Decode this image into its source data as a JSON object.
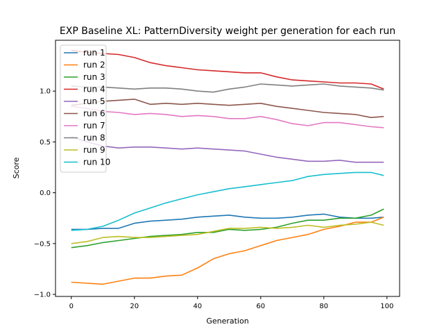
{
  "chart_data": {
    "type": "line",
    "title": "EXP Baseline XL: PatternDiversity weight per generation for each run",
    "xlabel": "Generation",
    "ylabel": "Score",
    "xlim": [
      -5,
      104
    ],
    "ylim": [
      -1.02,
      1.5
    ],
    "xticks": [
      0,
      20,
      40,
      60,
      80,
      100
    ],
    "yticks": [
      -1.0,
      -0.5,
      0.0,
      0.5,
      1.0
    ],
    "xtick_labels": [
      "0",
      "20",
      "40",
      "60",
      "80",
      "100"
    ],
    "ytick_labels": [
      "−1.0",
      "−0.5",
      "0.0",
      "0.5",
      "1.0"
    ],
    "grid": false,
    "legend_position": "top-left",
    "x": [
      0,
      5,
      10,
      15,
      20,
      25,
      30,
      35,
      40,
      45,
      50,
      55,
      60,
      65,
      70,
      75,
      80,
      85,
      90,
      95,
      99
    ],
    "series": [
      {
        "name": "run 1",
        "color": "#1f77b4",
        "values": [
          -0.36,
          -0.36,
          -0.35,
          -0.35,
          -0.3,
          -0.28,
          -0.27,
          -0.26,
          -0.24,
          -0.23,
          -0.22,
          -0.24,
          -0.25,
          -0.25,
          -0.24,
          -0.22,
          -0.21,
          -0.24,
          -0.25,
          -0.25,
          -0.24
        ]
      },
      {
        "name": "run 2",
        "color": "#ff7f0e",
        "values": [
          -0.88,
          -0.89,
          -0.9,
          -0.87,
          -0.84,
          -0.84,
          -0.82,
          -0.81,
          -0.74,
          -0.65,
          -0.6,
          -0.57,
          -0.52,
          -0.47,
          -0.44,
          -0.41,
          -0.36,
          -0.33,
          -0.29,
          -0.29,
          -0.24
        ]
      },
      {
        "name": "run 3",
        "color": "#2ca02c",
        "values": [
          -0.54,
          -0.52,
          -0.49,
          -0.47,
          -0.45,
          -0.43,
          -0.42,
          -0.41,
          -0.39,
          -0.39,
          -0.36,
          -0.37,
          -0.36,
          -0.34,
          -0.3,
          -0.27,
          -0.27,
          -0.25,
          -0.25,
          -0.22,
          -0.16
        ]
      },
      {
        "name": "run 4",
        "color": "#d62728",
        "values": [
          1.4,
          1.38,
          1.37,
          1.36,
          1.33,
          1.28,
          1.25,
          1.23,
          1.21,
          1.2,
          1.19,
          1.18,
          1.18,
          1.14,
          1.11,
          1.1,
          1.09,
          1.08,
          1.08,
          1.07,
          1.02
        ]
      },
      {
        "name": "run 5",
        "color": "#9467bd",
        "values": [
          0.55,
          0.5,
          0.46,
          0.44,
          0.45,
          0.45,
          0.44,
          0.43,
          0.44,
          0.43,
          0.42,
          0.41,
          0.38,
          0.35,
          0.33,
          0.31,
          0.31,
          0.32,
          0.3,
          0.3,
          0.3
        ]
      },
      {
        "name": "run 6",
        "color": "#8c564b",
        "values": [
          0.86,
          0.88,
          0.9,
          0.91,
          0.92,
          0.87,
          0.88,
          0.87,
          0.88,
          0.87,
          0.86,
          0.87,
          0.88,
          0.85,
          0.83,
          0.81,
          0.79,
          0.78,
          0.77,
          0.74,
          0.75
        ]
      },
      {
        "name": "run 7",
        "color": "#e377c2",
        "values": [
          0.85,
          0.83,
          0.8,
          0.79,
          0.77,
          0.78,
          0.77,
          0.75,
          0.76,
          0.75,
          0.73,
          0.73,
          0.75,
          0.72,
          0.68,
          0.66,
          0.69,
          0.69,
          0.67,
          0.65,
          0.64
        ]
      },
      {
        "name": "run 8",
        "color": "#7f7f7f",
        "values": [
          1.05,
          1.04,
          1.04,
          1.03,
          1.02,
          1.03,
          1.03,
          1.02,
          1.0,
          0.99,
          1.02,
          1.04,
          1.07,
          1.06,
          1.05,
          1.06,
          1.07,
          1.05,
          1.04,
          1.03,
          1.01
        ]
      },
      {
        "name": "run 9",
        "color": "#bcbd22",
        "values": [
          -0.5,
          -0.48,
          -0.44,
          -0.43,
          -0.44,
          -0.44,
          -0.43,
          -0.42,
          -0.41,
          -0.38,
          -0.35,
          -0.35,
          -0.34,
          -0.35,
          -0.34,
          -0.32,
          -0.34,
          -0.32,
          -0.31,
          -0.29,
          -0.32
        ]
      },
      {
        "name": "run 10",
        "color": "#17becf",
        "values": [
          -0.37,
          -0.36,
          -0.33,
          -0.27,
          -0.2,
          -0.15,
          -0.1,
          -0.06,
          -0.02,
          0.01,
          0.04,
          0.06,
          0.08,
          0.1,
          0.12,
          0.16,
          0.18,
          0.19,
          0.2,
          0.2,
          0.17
        ]
      }
    ]
  }
}
